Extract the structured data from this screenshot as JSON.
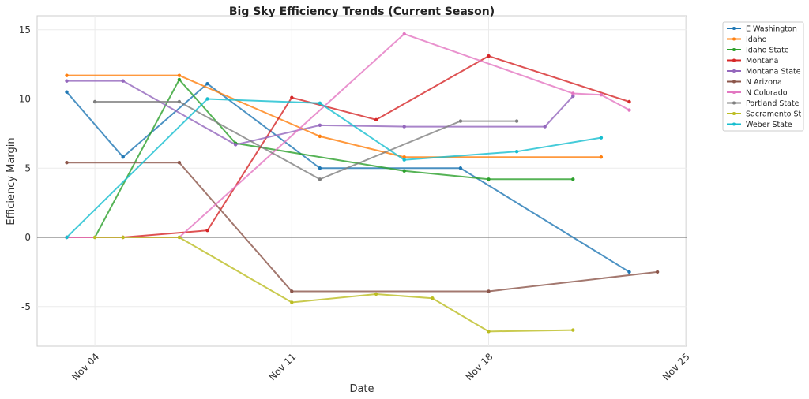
{
  "chart_data": {
    "type": "line",
    "title": "Big Sky Efficiency Trends (Current Season)",
    "xlabel": "Date",
    "ylabel": "Efficiency Margin",
    "xlim_day": [
      2,
      25.05
    ],
    "ylim": [
      -7.8,
      16
    ],
    "x_ticks": [
      {
        "day": 4,
        "label": "Nov 04"
      },
      {
        "day": 11,
        "label": "Nov 11"
      },
      {
        "day": 18,
        "label": "Nov 18"
      },
      {
        "day": 25,
        "label": "Nov 25"
      }
    ],
    "y_ticks": [
      -5,
      0,
      5,
      10,
      15
    ],
    "grid": true,
    "legend_position": "outside-top-right",
    "series": [
      {
        "name": "E Washington",
        "color": "#1f77b4",
        "points": [
          [
            3,
            10.5
          ],
          [
            5,
            5.8
          ],
          [
            8,
            11.1
          ],
          [
            12,
            5.0
          ],
          [
            17,
            5.0
          ],
          [
            23,
            -2.5
          ]
        ]
      },
      {
        "name": "Idaho",
        "color": "#ff7f0e",
        "points": [
          [
            3,
            11.7
          ],
          [
            7,
            11.7
          ],
          [
            12,
            7.3
          ],
          [
            15,
            5.8
          ],
          [
            22,
            5.8
          ]
        ]
      },
      {
        "name": "Idaho State",
        "color": "#2ca02c",
        "points": [
          [
            4,
            0
          ],
          [
            7,
            11.4
          ],
          [
            9,
            6.8
          ],
          [
            15,
            4.8
          ],
          [
            18,
            4.2
          ],
          [
            21,
            4.2
          ]
        ]
      },
      {
        "name": "Montana",
        "color": "#d62728",
        "points": [
          [
            3,
            0
          ],
          [
            5,
            0
          ],
          [
            8,
            0.5
          ],
          [
            11,
            10.1
          ],
          [
            14,
            8.5
          ],
          [
            18,
            13.1
          ],
          [
            23,
            9.8
          ]
        ]
      },
      {
        "name": "Montana State",
        "color": "#9467bd",
        "points": [
          [
            3,
            11.3
          ],
          [
            5,
            11.3
          ],
          [
            9,
            6.7
          ],
          [
            12,
            8.1
          ],
          [
            15,
            8.0
          ],
          [
            20,
            8.0
          ],
          [
            21,
            10.2
          ]
        ]
      },
      {
        "name": "N Arizona",
        "color": "#8c564b",
        "points": [
          [
            3,
            5.4
          ],
          [
            7,
            5.4
          ],
          [
            11,
            -3.9
          ],
          [
            18,
            -3.9
          ],
          [
            24,
            -2.5
          ]
        ]
      },
      {
        "name": "N Colorado",
        "color": "#e377c2",
        "points": [
          [
            3,
            0
          ],
          [
            7,
            0
          ],
          [
            15,
            14.7
          ],
          [
            21,
            10.4
          ],
          [
            22,
            10.3
          ],
          [
            23,
            9.2
          ]
        ]
      },
      {
        "name": "Portland State",
        "color": "#7f7f7f",
        "points": [
          [
            4,
            9.8
          ],
          [
            7,
            9.8
          ],
          [
            12,
            4.2
          ],
          [
            17,
            8.4
          ],
          [
            19,
            8.4
          ]
        ]
      },
      {
        "name": "Sacramento St",
        "color": "#bcbd22",
        "points": [
          [
            4,
            0
          ],
          [
            5,
            0
          ],
          [
            7,
            0
          ],
          [
            11,
            -4.7
          ],
          [
            14,
            -4.1
          ],
          [
            16,
            -4.4
          ],
          [
            18,
            -6.8
          ],
          [
            21,
            -6.7
          ]
        ]
      },
      {
        "name": "Weber State",
        "color": "#17becf",
        "points": [
          [
            3,
            0
          ],
          [
            8,
            10.0
          ],
          [
            12,
            9.7
          ],
          [
            15,
            5.6
          ],
          [
            19,
            6.2
          ],
          [
            22,
            7.2
          ]
        ]
      }
    ]
  }
}
